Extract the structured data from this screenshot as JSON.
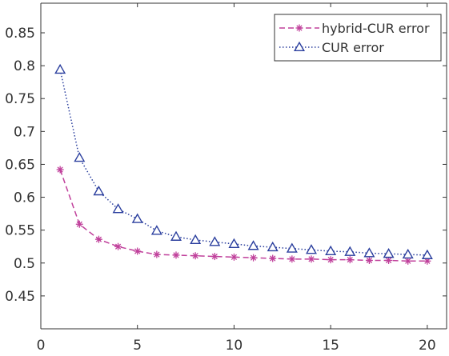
{
  "chart_data": {
    "type": "line",
    "x": [
      1,
      2,
      3,
      4,
      5,
      6,
      7,
      8,
      9,
      10,
      11,
      12,
      13,
      14,
      15,
      16,
      17,
      18,
      19,
      20
    ],
    "series": [
      {
        "name": "hybrid-CUR error",
        "color": "#c0409b",
        "line_style": "dashed",
        "marker": "asterisk",
        "values": [
          0.642,
          0.559,
          0.536,
          0.525,
          0.518,
          0.513,
          0.512,
          0.511,
          0.51,
          0.509,
          0.508,
          0.507,
          0.506,
          0.506,
          0.505,
          0.505,
          0.504,
          0.504,
          0.503,
          0.503
        ]
      },
      {
        "name": "CUR error",
        "color": "#2b3f9e",
        "line_style": "dotted",
        "marker": "triangle",
        "values": [
          0.794,
          0.66,
          0.609,
          0.582,
          0.567,
          0.549,
          0.54,
          0.535,
          0.532,
          0.529,
          0.526,
          0.524,
          0.522,
          0.52,
          0.518,
          0.517,
          0.515,
          0.514,
          0.513,
          0.512
        ]
      }
    ],
    "xlim": [
      0,
      21
    ],
    "ylim": [
      0.4,
      0.895
    ],
    "xticks": [
      0,
      5,
      10,
      15,
      20
    ],
    "yticks": [
      0.45,
      0.5,
      0.55,
      0.6,
      0.65,
      0.7,
      0.75,
      0.8,
      0.85
    ],
    "xticklabels": [
      "0",
      "5",
      "10",
      "15",
      "20"
    ],
    "yticklabels": [
      "0.45",
      "0.5",
      "0.55",
      "0.6",
      "0.65",
      "0.7",
      "0.75",
      "0.8",
      "0.85"
    ],
    "grid": false,
    "legend_position": "top-right"
  }
}
